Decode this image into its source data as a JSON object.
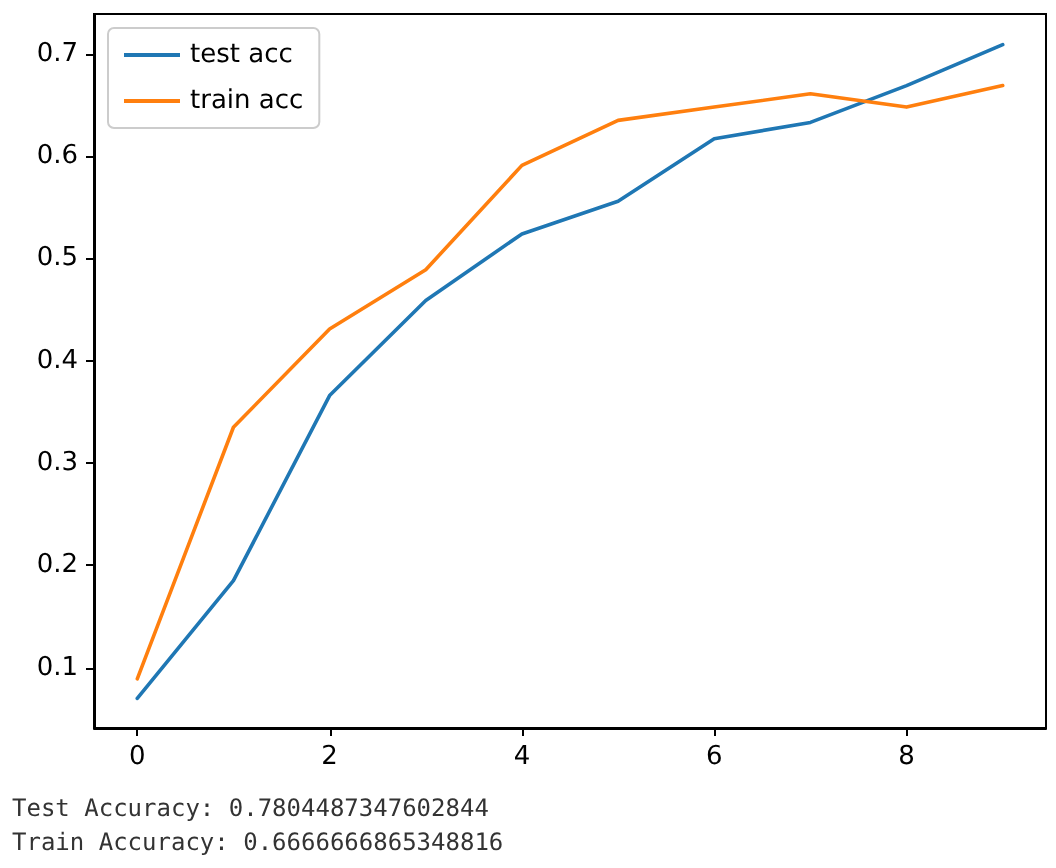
{
  "chart_data": {
    "type": "line",
    "x": [
      0,
      1,
      2,
      3,
      4,
      5,
      6,
      7,
      8,
      9
    ],
    "series": [
      {
        "name": "test acc",
        "color": "#1f77b4",
        "values": [
          0.07,
          0.185,
          0.366,
          0.459,
          0.524,
          0.556,
          0.617,
          0.633,
          0.669,
          0.709
        ]
      },
      {
        "name": "train acc",
        "color": "#ff7f0e",
        "values": [
          0.089,
          0.335,
          0.431,
          0.489,
          0.591,
          0.635,
          0.648,
          0.661,
          0.648,
          0.669
        ]
      }
    ],
    "xlim": [
      -0.45,
      9.45
    ],
    "xticks": [
      0,
      2,
      4,
      6,
      8
    ],
    "ylim": [
      0.041,
      0.739
    ],
    "yticks": [
      0.1,
      0.2,
      0.3,
      0.4,
      0.5,
      0.6,
      0.7
    ],
    "grid": false,
    "legend": "top left",
    "marker": "none",
    "line_style": "solid",
    "annotations": [
      "Test Accuracy: 0.7804487347602844",
      "Train Accuracy: 0.6666666865348816"
    ]
  }
}
